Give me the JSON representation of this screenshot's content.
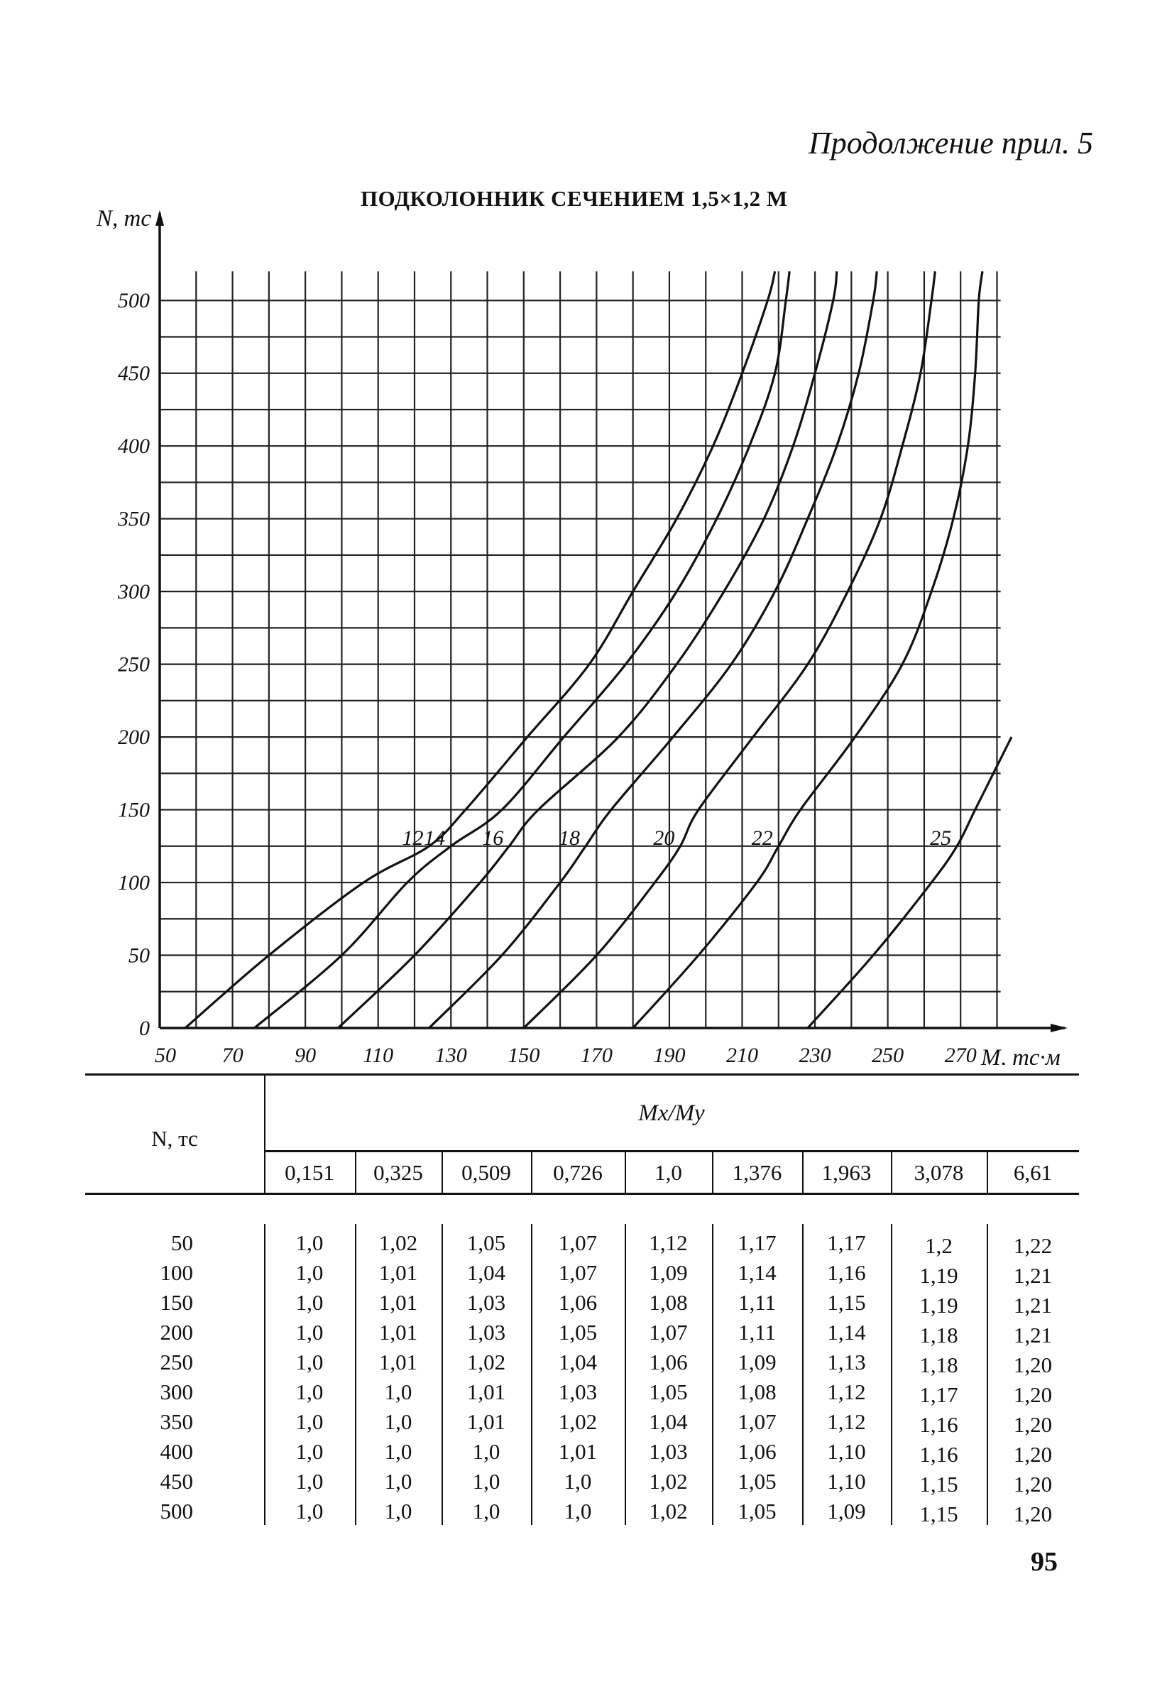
{
  "header": {
    "note": "Продолжение прил. 5"
  },
  "page_number": "95",
  "chart_data": {
    "type": "line",
    "title": "ПОДКОЛОННИК СЕЧЕНИЕМ 1,5×1,2 М",
    "xlabel": "M, тс·м",
    "ylabel": "N, тс",
    "xlim": [
      50,
      284
    ],
    "ylim": [
      0,
      525
    ],
    "x_ticks": [
      "50",
      "70",
      "90",
      "110",
      "130",
      "150",
      "170",
      "190",
      "210",
      "230",
      "250",
      "270"
    ],
    "y_ticks": [
      "0",
      "50",
      "100",
      "150",
      "200",
      "250",
      "300",
      "350",
      "400",
      "450",
      "500"
    ],
    "grid": true,
    "series": [
      {
        "name": "12",
        "points": [
          [
            57,
            0
          ],
          [
            80,
            50
          ],
          [
            106,
            100
          ],
          [
            124,
            125
          ],
          [
            134,
            150
          ],
          [
            151,
            200
          ],
          [
            168,
            250
          ],
          [
            180,
            300
          ],
          [
            192,
            350
          ],
          [
            202,
            400
          ],
          [
            210,
            450
          ],
          [
            217,
            500
          ],
          [
            219,
            520
          ]
        ]
      },
      {
        "name": "14",
        "points": [
          [
            76,
            0
          ],
          [
            100,
            50
          ],
          [
            118,
            100
          ],
          [
            130,
            125
          ],
          [
            144,
            150
          ],
          [
            161,
            200
          ],
          [
            178,
            250
          ],
          [
            192,
            300
          ],
          [
            203,
            350
          ],
          [
            212,
            400
          ],
          [
            219,
            450
          ],
          [
            222,
            500
          ],
          [
            223,
            520
          ]
        ]
      },
      {
        "name": "16",
        "points": [
          [
            99,
            0
          ],
          [
            120,
            50
          ],
          [
            138,
            100
          ],
          [
            146,
            125
          ],
          [
            154,
            150
          ],
          [
            176,
            200
          ],
          [
            192,
            250
          ],
          [
            205,
            300
          ],
          [
            216,
            350
          ],
          [
            224,
            400
          ],
          [
            230,
            450
          ],
          [
            235,
            500
          ],
          [
            236,
            520
          ]
        ]
      },
      {
        "name": "18",
        "points": [
          [
            124,
            0
          ],
          [
            144,
            50
          ],
          [
            160,
            100
          ],
          [
            167,
            125
          ],
          [
            174,
            150
          ],
          [
            191,
            200
          ],
          [
            207,
            250
          ],
          [
            219,
            300
          ],
          [
            228,
            350
          ],
          [
            236,
            400
          ],
          [
            242,
            450
          ],
          [
            246,
            500
          ],
          [
            247,
            520
          ]
        ]
      },
      {
        "name": "20",
        "points": [
          [
            150,
            0
          ],
          [
            170,
            50
          ],
          [
            186,
            100
          ],
          [
            193,
            125
          ],
          [
            198,
            150
          ],
          [
            213,
            200
          ],
          [
            228,
            250
          ],
          [
            239,
            300
          ],
          [
            248,
            350
          ],
          [
            254,
            400
          ],
          [
            259,
            450
          ],
          [
            262,
            500
          ],
          [
            263,
            520
          ]
        ]
      },
      {
        "name": "22",
        "points": [
          [
            180,
            0
          ],
          [
            198,
            50
          ],
          [
            214,
            100
          ],
          [
            220,
            125
          ],
          [
            226,
            150
          ],
          [
            241,
            200
          ],
          [
            254,
            250
          ],
          [
            262,
            300
          ],
          [
            268,
            350
          ],
          [
            272,
            400
          ],
          [
            274,
            450
          ],
          [
            275,
            500
          ],
          [
            276,
            520
          ]
        ]
      },
      {
        "name": "25",
        "points": [
          [
            228,
            0
          ],
          [
            246,
            50
          ],
          [
            262,
            100
          ],
          [
            269,
            125
          ],
          [
            274,
            150
          ],
          [
            280,
            180
          ],
          [
            284,
            200
          ]
        ]
      }
    ]
  },
  "table": {
    "row_header": "N, тс",
    "group_header": "Mx/My",
    "columns": [
      "0,151",
      "0,325",
      "0,509",
      "0,726",
      "1,0",
      "1,376",
      "1,963",
      "3,078",
      "6,61"
    ],
    "rows": [
      {
        "n": "50",
        "values": [
          "1,0",
          "1,02",
          "1,05",
          "1,07",
          "1,12",
          "1,17",
          "1,17",
          "1,2",
          "1,22"
        ]
      },
      {
        "n": "100",
        "values": [
          "1,0",
          "1,01",
          "1,04",
          "1,07",
          "1,09",
          "1,14",
          "1,16",
          "1,19",
          "1,21"
        ]
      },
      {
        "n": "150",
        "values": [
          "1,0",
          "1,01",
          "1,03",
          "1,06",
          "1,08",
          "1,11",
          "1,15",
          "1,19",
          "1,21"
        ]
      },
      {
        "n": "200",
        "values": [
          "1,0",
          "1,01",
          "1,03",
          "1,05",
          "1,07",
          "1,11",
          "1,14",
          "1,18",
          "1,21"
        ]
      },
      {
        "n": "250",
        "values": [
          "1,0",
          "1,01",
          "1,02",
          "1,04",
          "1,06",
          "1,09",
          "1,13",
          "1,18",
          "1,20"
        ]
      },
      {
        "n": "300",
        "values": [
          "1,0",
          "1,0",
          "1,01",
          "1,03",
          "1,05",
          "1,08",
          "1,12",
          "1,17",
          "1,20"
        ]
      },
      {
        "n": "350",
        "values": [
          "1,0",
          "1,0",
          "1,01",
          "1,02",
          "1,04",
          "1,07",
          "1,12",
          "1,16",
          "1,20"
        ]
      },
      {
        "n": "400",
        "values": [
          "1,0",
          "1,0",
          "1,0",
          "1,01",
          "1,03",
          "1,06",
          "1,10",
          "1,16",
          "1,20"
        ]
      },
      {
        "n": "450",
        "values": [
          "1,0",
          "1,0",
          "1,0",
          "1,0",
          "1,02",
          "1,05",
          "1,10",
          "1,15",
          "1,20"
        ]
      },
      {
        "n": "500",
        "values": [
          "1,0",
          "1,0",
          "1,0",
          "1,0",
          "1,02",
          "1,05",
          "1,09",
          "1,15",
          "1,20"
        ]
      }
    ]
  }
}
